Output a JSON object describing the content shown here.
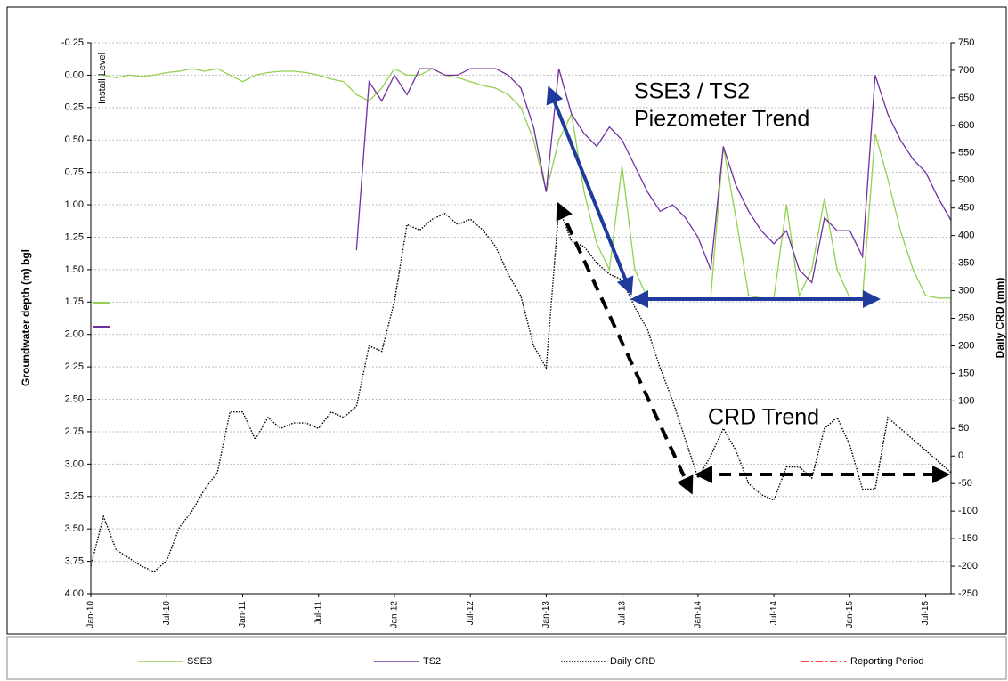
{
  "chart_data": {
    "type": "line",
    "y_title": "Groundwater depth (m) bgl",
    "y2_title": "Daily CRD (mm)",
    "annotations": [
      "Install Level",
      "SSE3 / TS2",
      "Piezometer Trend",
      "CRD Trend"
    ],
    "x": [
      "Jan-10",
      null,
      null,
      null,
      null,
      null,
      "Jul-10",
      null,
      null,
      null,
      null,
      null,
      "Jan-11",
      null,
      null,
      null,
      null,
      null,
      "Jul-11",
      null,
      null,
      null,
      null,
      null,
      "Jan-12",
      null,
      null,
      null,
      null,
      null,
      "Jul-12",
      null,
      null,
      null,
      null,
      null,
      "Jan-13",
      null,
      null,
      null,
      null,
      null,
      "Jul-13",
      null,
      null,
      null,
      null,
      null,
      "Jan-14",
      null,
      null,
      null,
      null,
      null,
      "Jul-14",
      null,
      null,
      null,
      null,
      null,
      "Jan-15",
      null,
      null,
      null,
      null,
      null,
      "Jul-15",
      null,
      null
    ],
    "ylim": [
      -0.25,
      4.0
    ],
    "y_inverted": true,
    "yticks": [
      -0.25,
      {
        "value": 0,
        "label": "0.00"
      },
      0.25,
      {
        "value": 0.5,
        "label": "0.50"
      },
      0.75,
      {
        "value": 1,
        "label": "1.00"
      },
      1.25,
      {
        "value": 1.5,
        "label": "1.50"
      },
      1.75,
      {
        "value": 2,
        "label": "2.00"
      },
      2.25,
      {
        "value": 2.5,
        "label": "2.50"
      },
      2.75,
      {
        "value": 3,
        "label": "3.00"
      },
      3.25,
      {
        "value": 3.5,
        "label": "3.50"
      },
      3.75,
      {
        "value": 4,
        "label": "4.00"
      }
    ],
    "y2lim": [
      -250,
      750
    ],
    "y2ticks": [
      750,
      700,
      650,
      600,
      550,
      500,
      450,
      400,
      350,
      300,
      250,
      200,
      150,
      100,
      50,
      0,
      -50,
      -100,
      -150,
      -200,
      -250
    ],
    "grid": true,
    "series": [
      {
        "name": "SSE3",
        "color": "#92d050",
        "style": "solid",
        "values": [
          null,
          0.0,
          0.02,
          0.0,
          0.01,
          0.0,
          -0.02,
          -0.03,
          -0.05,
          -0.03,
          -0.05,
          0.0,
          0.05,
          0.0,
          -0.02,
          -0.03,
          -0.03,
          -0.02,
          0.0,
          0.03,
          0.05,
          0.15,
          0.2,
          0.1,
          -0.05,
          0.0,
          0.0,
          -0.05,
          0.0,
          0.02,
          0.05,
          0.08,
          0.1,
          0.15,
          0.25,
          0.5,
          0.9,
          0.5,
          0.3,
          0.9,
          1.3,
          1.5,
          0.7,
          1.5,
          1.72,
          1.72,
          1.72,
          1.72,
          1.72,
          1.72,
          0.55,
          1.1,
          1.7,
          1.72,
          1.72,
          1.0,
          1.7,
          1.5,
          0.95,
          1.5,
          1.72,
          1.72,
          0.45,
          0.8,
          1.2,
          1.5,
          1.7,
          1.72,
          1.72
        ]
      },
      {
        "name": "TS2",
        "color": "#7030a0",
        "style": "solid",
        "values": [
          null,
          null,
          null,
          null,
          null,
          null,
          null,
          null,
          null,
          null,
          null,
          null,
          null,
          null,
          null,
          null,
          null,
          null,
          null,
          null,
          null,
          1.35,
          0.05,
          0.2,
          0.0,
          0.15,
          -0.05,
          -0.05,
          0.0,
          0.0,
          -0.05,
          -0.05,
          -0.05,
          0.0,
          0.1,
          0.4,
          0.9,
          -0.05,
          0.3,
          0.45,
          0.55,
          0.4,
          0.5,
          0.7,
          0.9,
          1.05,
          1.0,
          1.1,
          1.25,
          1.5,
          0.55,
          0.85,
          1.05,
          1.2,
          1.3,
          1.2,
          1.5,
          1.6,
          1.1,
          1.2,
          1.2,
          1.4,
          0.0,
          0.3,
          0.5,
          0.65,
          0.75,
          0.95,
          1.12
        ]
      },
      {
        "name": "Daily CRD",
        "color": "#000000",
        "style": "dotted",
        "axis": "y2",
        "values": [
          -200,
          -110,
          -170,
          -185,
          -200,
          -210,
          -190,
          -130,
          -100,
          -60,
          -30,
          80,
          80,
          30,
          70,
          50,
          60,
          60,
          50,
          80,
          70,
          90,
          200,
          190,
          280,
          420,
          410,
          430,
          440,
          420,
          430,
          410,
          380,
          330,
          290,
          200,
          160,
          450,
          390,
          380,
          350,
          330,
          320,
          270,
          230,
          160,
          100,
          30,
          -40,
          0,
          50,
          10,
          -50,
          -70,
          -80,
          -20,
          -20,
          -40,
          50,
          70,
          20,
          -60,
          -60,
          70,
          50,
          30,
          10,
          -10,
          -30
        ]
      },
      {
        "name": "Reporting Period",
        "color": "#ff0000",
        "style": "dashdot",
        "values": [
          null,
          null,
          null,
          null,
          null,
          null,
          null,
          null,
          null,
          null,
          null,
          null,
          null,
          null,
          null,
          null,
          null,
          null,
          null,
          null,
          null,
          null,
          null,
          null,
          null,
          null,
          null,
          null,
          null,
          null,
          null,
          null,
          null,
          null,
          null,
          null,
          null,
          null,
          null,
          null,
          null,
          null,
          null,
          null,
          null,
          null,
          null,
          null,
          null,
          null,
          null,
          null,
          null,
          null,
          null,
          null,
          null,
          null,
          null,
          null,
          null,
          null,
          null,
          null,
          null,
          null,
          null,
          null,
          null
        ]
      }
    ]
  }
}
